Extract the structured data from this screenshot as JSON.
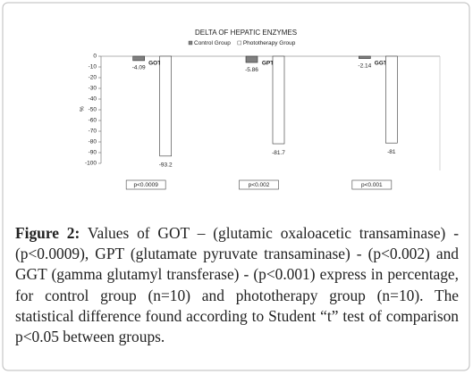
{
  "chart_data": {
    "type": "bar",
    "title": "DELTA OF HEPATIC ENZYMES",
    "y_label": "%",
    "categories": [
      "GOT",
      "GPT",
      "GGT"
    ],
    "series": [
      {
        "name": "Control Group",
        "color": "#808080",
        "values": [
          -4.09,
          -5.86,
          -2.14
        ]
      },
      {
        "name": "Phototherapy Group",
        "color": "#ffffff",
        "values": [
          -93.2,
          -81.7,
          -81
        ]
      }
    ],
    "annotations": [
      "p<0.0009",
      "p<0.002",
      "p<0.001"
    ],
    "ylim": [
      0,
      -100
    ],
    "yticks": [
      0,
      -10,
      -20,
      -30,
      -40,
      -50,
      -60,
      -70,
      -80,
      -90,
      -100
    ],
    "legend": "top"
  },
  "caption": {
    "label": "Figure 2:",
    "text": "Values of GOT – (glutamic oxaloacetic transaminase) - (p<0.0009), GPT (glutamate pyruvate transaminase) - (p<0.002) and GGT (gamma glutamyl transferase) - (p<0.001) express in percentage, for control group (n=10) and phototherapy group (n=10). The statistical difference found according to Student “t” test of comparison p<0.05 between groups."
  }
}
